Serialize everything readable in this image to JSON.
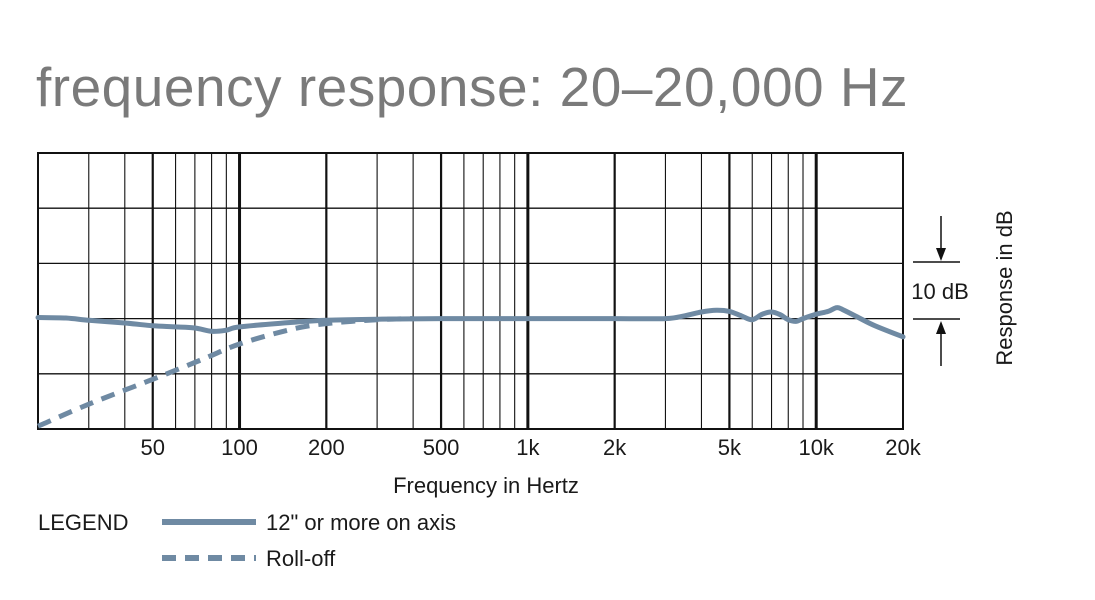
{
  "title": "frequency response: 20–20,000 Hz",
  "chart_data": {
    "type": "line",
    "xlabel": "Frequency in Hertz",
    "ylabel": "Response in dB",
    "xscale": "log",
    "xlim": [
      20,
      20000
    ],
    "ylim": [
      -20,
      30
    ],
    "grid": true,
    "x_ticks": [
      {
        "value": 50,
        "label": "50"
      },
      {
        "value": 100,
        "label": "100"
      },
      {
        "value": 200,
        "label": "200"
      },
      {
        "value": 500,
        "label": "500"
      },
      {
        "value": 1000,
        "label": "1k"
      },
      {
        "value": 2000,
        "label": "2k"
      },
      {
        "value": 5000,
        "label": "5k"
      },
      {
        "value": 10000,
        "label": "10k"
      },
      {
        "value": 20000,
        "label": "20k"
      }
    ],
    "scale_annotation": "10 dB",
    "series": [
      {
        "name": "12\" or more on axis",
        "style": "solid",
        "color": "#6f8aa3",
        "points": [
          [
            20,
            0.2
          ],
          [
            25,
            0.1
          ],
          [
            30,
            -0.3
          ],
          [
            40,
            -0.8
          ],
          [
            50,
            -1.3
          ],
          [
            60,
            -1.5
          ],
          [
            70,
            -1.7
          ],
          [
            80,
            -2.3
          ],
          [
            90,
            -2.1
          ],
          [
            100,
            -1.5
          ],
          [
            150,
            -0.7
          ],
          [
            200,
            -0.3
          ],
          [
            300,
            -0.1
          ],
          [
            500,
            0
          ],
          [
            1000,
            0
          ],
          [
            2000,
            0
          ],
          [
            3000,
            0
          ],
          [
            3500,
            0.5
          ],
          [
            4000,
            1.2
          ],
          [
            4500,
            1.5
          ],
          [
            5000,
            1.3
          ],
          [
            5500,
            0.5
          ],
          [
            6000,
            -0.2
          ],
          [
            6500,
            0.8
          ],
          [
            7000,
            1.2
          ],
          [
            7500,
            0.7
          ],
          [
            8000,
            -0.2
          ],
          [
            8500,
            -0.5
          ],
          [
            9000,
            0
          ],
          [
            10000,
            0.8
          ],
          [
            11000,
            1.3
          ],
          [
            11800,
            2.0
          ],
          [
            12500,
            1.5
          ],
          [
            14000,
            0.2
          ],
          [
            16000,
            -1.3
          ],
          [
            20000,
            -3.3
          ]
        ]
      },
      {
        "name": "Roll-off",
        "style": "dashed",
        "color": "#6f8aa3",
        "points": [
          [
            20,
            -19.5
          ],
          [
            30,
            -15.5
          ],
          [
            50,
            -11.0
          ],
          [
            75,
            -7.3
          ],
          [
            100,
            -4.6
          ],
          [
            150,
            -2.0
          ],
          [
            200,
            -0.9
          ],
          [
            300,
            -0.2
          ],
          [
            400,
            0
          ]
        ]
      }
    ],
    "legend": {
      "title": "LEGEND",
      "position": "bottom-left",
      "entries": [
        {
          "label": "12\" or more on axis",
          "style": "solid"
        },
        {
          "label": "Roll-off",
          "style": "dashed"
        }
      ]
    }
  }
}
